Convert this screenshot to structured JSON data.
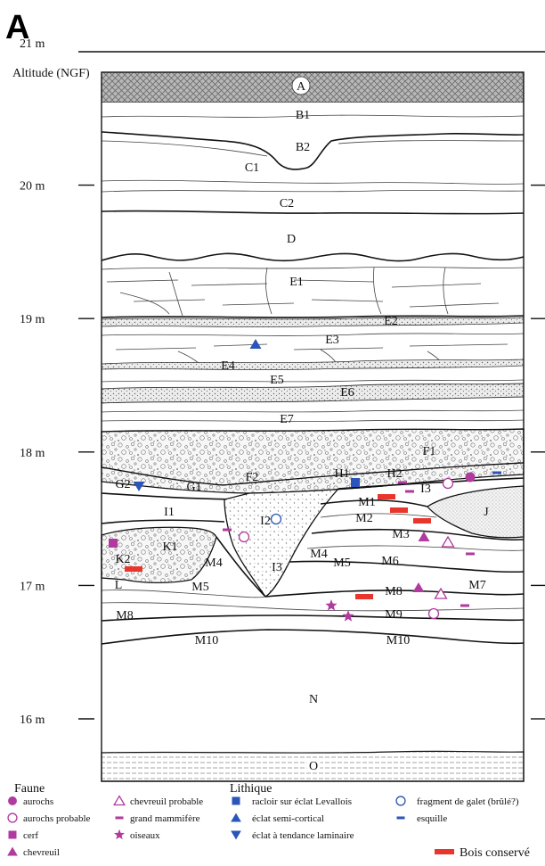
{
  "panel_letter": "A",
  "y_axis": {
    "label": "Altitude (NGF)",
    "ticks": [
      {
        "label": "21 m",
        "value": 21
      },
      {
        "label": "20 m",
        "value": 20
      },
      {
        "label": "19 m",
        "value": 19
      },
      {
        "label": "18 m",
        "value": 18
      },
      {
        "label": "17 m",
        "value": 17
      },
      {
        "label": "16 m",
        "value": 16
      }
    ]
  },
  "layers": {
    "A": "A",
    "B1": "B1",
    "B2": "B2",
    "C1": "C1",
    "C2": "C2",
    "D": "D",
    "E1": "E1",
    "E2": "E2",
    "E3": "E3",
    "E4": "E4",
    "E5": "E5",
    "E6": "E6",
    "E7": "E7",
    "F1": "F1",
    "F2": "F2",
    "G1": "G1",
    "G2": "G2",
    "H1": "H1",
    "H2": "H2",
    "I1": "I1",
    "I2": "I2",
    "I3a": "I3",
    "I3b": "I3",
    "J": "J",
    "K1": "K1",
    "K2": "K2",
    "L": "L",
    "M1": "M1",
    "M2": "M2",
    "M3": "M3",
    "M4a": "M4",
    "M4b": "M4",
    "M5a": "M5",
    "M5b": "M5",
    "M6": "M6",
    "M7": "M7",
    "M8a": "M8",
    "M8b": "M8",
    "M9": "M9",
    "M10a": "M10",
    "M10b": "M10",
    "N": "N",
    "O": "O"
  },
  "legend": {
    "faune_title": "Faune",
    "faune": [
      {
        "symbol": "filled-circle",
        "label": "aurochs"
      },
      {
        "symbol": "open-circle",
        "label": "aurochs probable"
      },
      {
        "symbol": "filled-square",
        "label": "cerf"
      },
      {
        "symbol": "filled-triangle",
        "label": "chevreuil"
      },
      {
        "symbol": "open-triangle",
        "label": "chevreuil probable"
      },
      {
        "symbol": "dash",
        "label": "grand mammifère"
      },
      {
        "symbol": "star",
        "label": "oiseaux"
      }
    ],
    "lithique_title": "Lithique",
    "lithique": [
      {
        "symbol": "filled-square",
        "label": "racloir sur éclat Levallois"
      },
      {
        "symbol": "filled-triangle",
        "label": "éclat semi-cortical"
      },
      {
        "symbol": "filled-triangle-down",
        "label": "éclat à tendance laminaire"
      },
      {
        "symbol": "open-circle",
        "label": "fragment de galet (brûlé?)"
      },
      {
        "symbol": "dash",
        "label": "esquille"
      }
    ],
    "wood_label": "Bois conservé"
  },
  "colors": {
    "faune": "#b03a9e",
    "lithique": "#2b55b8",
    "wood": "#e8362c",
    "hatch": "#a8a8a8"
  }
}
